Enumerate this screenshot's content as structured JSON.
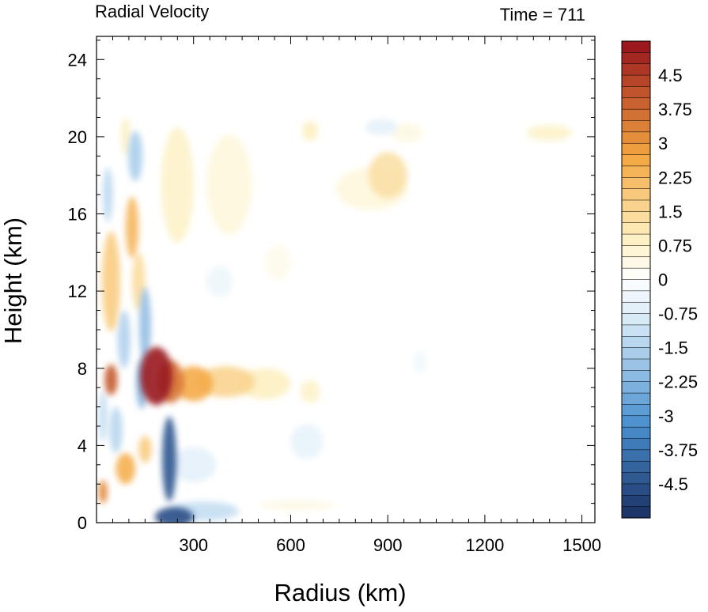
{
  "chart_data": {
    "type": "heatmap",
    "title_left": "Radial Velocity",
    "title_right": "Time = 711",
    "xlabel": "Radius (km)",
    "ylabel": "Height (km)",
    "xlim": [
      0,
      1540
    ],
    "ylim": [
      0,
      25.2
    ],
    "x_ticks": [
      300,
      600,
      900,
      1200,
      1500
    ],
    "x_tick_labels": [
      "300",
      "600",
      "900",
      "1200",
      "1500"
    ],
    "y_ticks": [
      0,
      4,
      8,
      12,
      16,
      20,
      24
    ],
    "y_tick_labels": [
      "0",
      "4",
      "8",
      "12",
      "16",
      "20",
      "24"
    ],
    "colorbar": {
      "min": -5.25,
      "max": 5.25,
      "step": 0.25,
      "tick_values": [
        4.5,
        3.75,
        3,
        2.25,
        1.5,
        0.75,
        0,
        -0.75,
        -1.5,
        -2.25,
        -3,
        -3.75,
        -4.5
      ],
      "tick_labels": [
        "4.5",
        "3.75",
        "3",
        "2.25",
        "1.5",
        "0.75",
        "0",
        "-0.75",
        "-1.5",
        "-2.25",
        "-3",
        "-3.75",
        "-4.5"
      ],
      "colors": {
        "strong_neg": "#1a3063",
        "mid_neg": "#4a8fcf",
        "weak_neg": "#d6eaf7",
        "zero": "#ffffff",
        "weak_pos": "#fdf0c2",
        "mid_pos": "#f4a742",
        "strong_pos": "#96121c"
      }
    },
    "features": [
      {
        "x": 185,
        "y": 7.6,
        "rx": 50,
        "ry": 1.5,
        "value": 5.2
      },
      {
        "x": 230,
        "y": 7.3,
        "rx": 40,
        "ry": 1.1,
        "value": 3.5
      },
      {
        "x": 300,
        "y": 7.2,
        "rx": 60,
        "ry": 0.9,
        "value": 2.6
      },
      {
        "x": 400,
        "y": 7.3,
        "rx": 90,
        "ry": 0.8,
        "value": 1.6
      },
      {
        "x": 520,
        "y": 7.2,
        "rx": 80,
        "ry": 0.8,
        "value": 0.9
      },
      {
        "x": 45,
        "y": 7.4,
        "rx": 20,
        "ry": 0.8,
        "value": 4.0
      },
      {
        "x": 45,
        "y": 12.5,
        "rx": 28,
        "ry": 2.6,
        "value": 1.8
      },
      {
        "x": 110,
        "y": 15.3,
        "rx": 20,
        "ry": 1.6,
        "value": 2.3
      },
      {
        "x": 130,
        "y": 12.5,
        "rx": 20,
        "ry": 1.5,
        "value": 1.4
      },
      {
        "x": 90,
        "y": 2.8,
        "rx": 30,
        "ry": 0.8,
        "value": 2.5
      },
      {
        "x": 20,
        "y": 1.6,
        "rx": 14,
        "ry": 0.6,
        "value": 3.2
      },
      {
        "x": 150,
        "y": 3.8,
        "rx": 20,
        "ry": 0.7,
        "value": 1.8
      },
      {
        "x": 225,
        "y": 3.3,
        "rx": 22,
        "ry": 2.2,
        "value": -4.4
      },
      {
        "x": 240,
        "y": 0.3,
        "rx": 60,
        "ry": 0.5,
        "value": -4.6
      },
      {
        "x": 330,
        "y": 0.6,
        "rx": 110,
        "ry": 0.5,
        "value": -1.2
      },
      {
        "x": 300,
        "y": 3.0,
        "rx": 70,
        "ry": 0.9,
        "value": -0.6
      },
      {
        "x": 20,
        "y": 5.5,
        "rx": 14,
        "ry": 1.3,
        "value": -1.2
      },
      {
        "x": 150,
        "y": 10.2,
        "rx": 18,
        "ry": 2.0,
        "value": -2.0
      },
      {
        "x": 140,
        "y": 7.2,
        "rx": 18,
        "ry": 1.3,
        "value": -2.2
      },
      {
        "x": 85,
        "y": 9.5,
        "rx": 20,
        "ry": 1.5,
        "value": -1.5
      },
      {
        "x": 60,
        "y": 4.8,
        "rx": 20,
        "ry": 1.2,
        "value": -1.4
      },
      {
        "x": 120,
        "y": 19.0,
        "rx": 22,
        "ry": 1.3,
        "value": -1.6
      },
      {
        "x": 35,
        "y": 17.0,
        "rx": 16,
        "ry": 1.4,
        "value": -1.3
      },
      {
        "x": 90,
        "y": 20.0,
        "rx": 14,
        "ry": 1.0,
        "value": 0.9
      },
      {
        "x": 250,
        "y": 17.5,
        "rx": 50,
        "ry": 3.0,
        "value": 0.8
      },
      {
        "x": 410,
        "y": 17.5,
        "rx": 70,
        "ry": 2.6,
        "value": 0.5
      },
      {
        "x": 900,
        "y": 18.0,
        "rx": 60,
        "ry": 1.2,
        "value": 1.3
      },
      {
        "x": 850,
        "y": 17.3,
        "rx": 110,
        "ry": 1.1,
        "value": 0.5
      },
      {
        "x": 660,
        "y": 20.3,
        "rx": 25,
        "ry": 0.5,
        "value": 0.9
      },
      {
        "x": 1400,
        "y": 20.2,
        "rx": 70,
        "ry": 0.4,
        "value": 0.8
      },
      {
        "x": 960,
        "y": 20.2,
        "rx": 50,
        "ry": 0.5,
        "value": 0.4
      },
      {
        "x": 880,
        "y": 20.5,
        "rx": 50,
        "ry": 0.4,
        "value": -0.6
      },
      {
        "x": 650,
        "y": 4.2,
        "rx": 50,
        "ry": 0.9,
        "value": -0.5
      },
      {
        "x": 560,
        "y": 13.5,
        "rx": 40,
        "ry": 0.9,
        "value": 0.3
      },
      {
        "x": 660,
        "y": 6.8,
        "rx": 30,
        "ry": 0.6,
        "value": 0.8
      },
      {
        "x": 1000,
        "y": 8.3,
        "rx": 20,
        "ry": 0.6,
        "value": -0.3
      },
      {
        "x": 380,
        "y": 12.5,
        "rx": 40,
        "ry": 0.8,
        "value": -0.4
      },
      {
        "x": 620,
        "y": 0.9,
        "rx": 120,
        "ry": 0.25,
        "value": 0.4
      }
    ]
  }
}
